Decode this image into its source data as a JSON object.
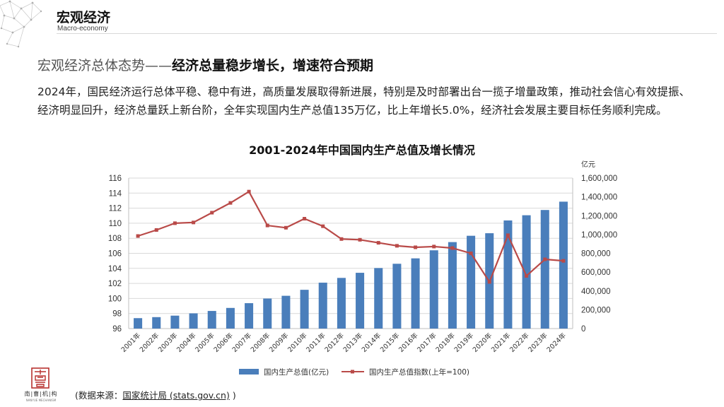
{
  "header": {
    "section_title": "宏观经济",
    "section_subtitle": "Macro-economy"
  },
  "heading": {
    "lead": "宏观经济总体态势",
    "dash": "——",
    "emphasis": "经济总量稳步增长，增速符合预期"
  },
  "paragraph": "2024年，国民经济运行总体平稳、稳中有进，高质量发展取得新进展，特别是及时部署出台一揽子增量政策，推动社会信心有效提振、经济明显回升，经济总量跃上新台阶，全年实现国内生产总值135万亿，比上年增长5.0%，经济社会发展主要目标任务顺利完成。",
  "logo": {
    "name": "南|曹|机|构",
    "english": "NANYUE MECHANISM"
  },
  "source": {
    "prefix": "(数据来源：",
    "link": "国家统计局 (stats.gov.cn)",
    "suffix": " )"
  },
  "colors": {
    "bar": "#4a7ebb",
    "line": "#b94a48",
    "grid": "#d9d9d9",
    "axis": "#bfbfbf"
  },
  "chart_data": {
    "type": "bar",
    "title": "2001-2024年中国国内生产总值及增长情况",
    "categories": [
      "2001年",
      "2002年",
      "2003年",
      "2004年",
      "2005年",
      "2006年",
      "2007年",
      "2008年",
      "2009年",
      "2010年",
      "2011年",
      "2012年",
      "2013年",
      "2014年",
      "2015年",
      "2016年",
      "2017年",
      "2018年",
      "2019年",
      "2020年",
      "2021年",
      "2022年",
      "2023年",
      "2024年"
    ],
    "series": [
      {
        "name": "国内生产总值(亿元)",
        "type": "bar",
        "axis": "right",
        "values": [
          110863,
          121717,
          137422,
          161840,
          187319,
          219438,
          270092,
          319245,
          348518,
          412119,
          487940,
          538580,
          592963,
          643563,
          688858,
          746395,
          832036,
          919281,
          986515,
          1013567,
          1149237,
          1204724,
          1260582,
          1349084
        ]
      },
      {
        "name": "国内生产总值指数(上年=100)",
        "type": "line",
        "axis": "left",
        "values": [
          108.3,
          109.1,
          110.0,
          110.1,
          111.4,
          112.7,
          114.2,
          109.7,
          109.4,
          110.6,
          109.6,
          107.9,
          107.8,
          107.4,
          107.0,
          106.8,
          106.9,
          106.7,
          106.0,
          102.2,
          108.4,
          103.0,
          105.2,
          105.0
        ]
      }
    ],
    "y_left": {
      "min": 96,
      "max": 116,
      "step": 2
    },
    "y_right": {
      "min": 0,
      "max": 1600000,
      "step": 200000,
      "unit": "亿元"
    },
    "legend_position": "bottom",
    "grid": true
  }
}
